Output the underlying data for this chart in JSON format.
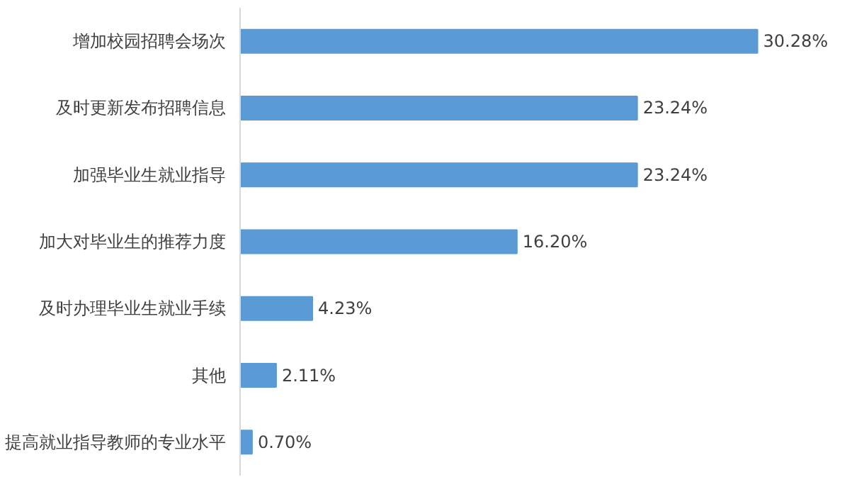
{
  "chart_data": {
    "type": "bar",
    "orientation": "horizontal",
    "categories": [
      "增加校园招聘会场次",
      "及时更新发布招聘信息",
      "加强毕业生就业指导",
      "加大对毕业生的推荐力度",
      "及时办理毕业生就业手续",
      "其他",
      "提高就业指导教师的专业水平"
    ],
    "values": [
      30.28,
      23.24,
      23.24,
      16.2,
      4.23,
      2.11,
      0.7
    ],
    "value_labels": [
      "30.28%",
      "23.24%",
      "23.24%",
      "16.20%",
      "4.23%",
      "2.11%",
      "0.70%"
    ],
    "color": "#5b9bd5"
  }
}
